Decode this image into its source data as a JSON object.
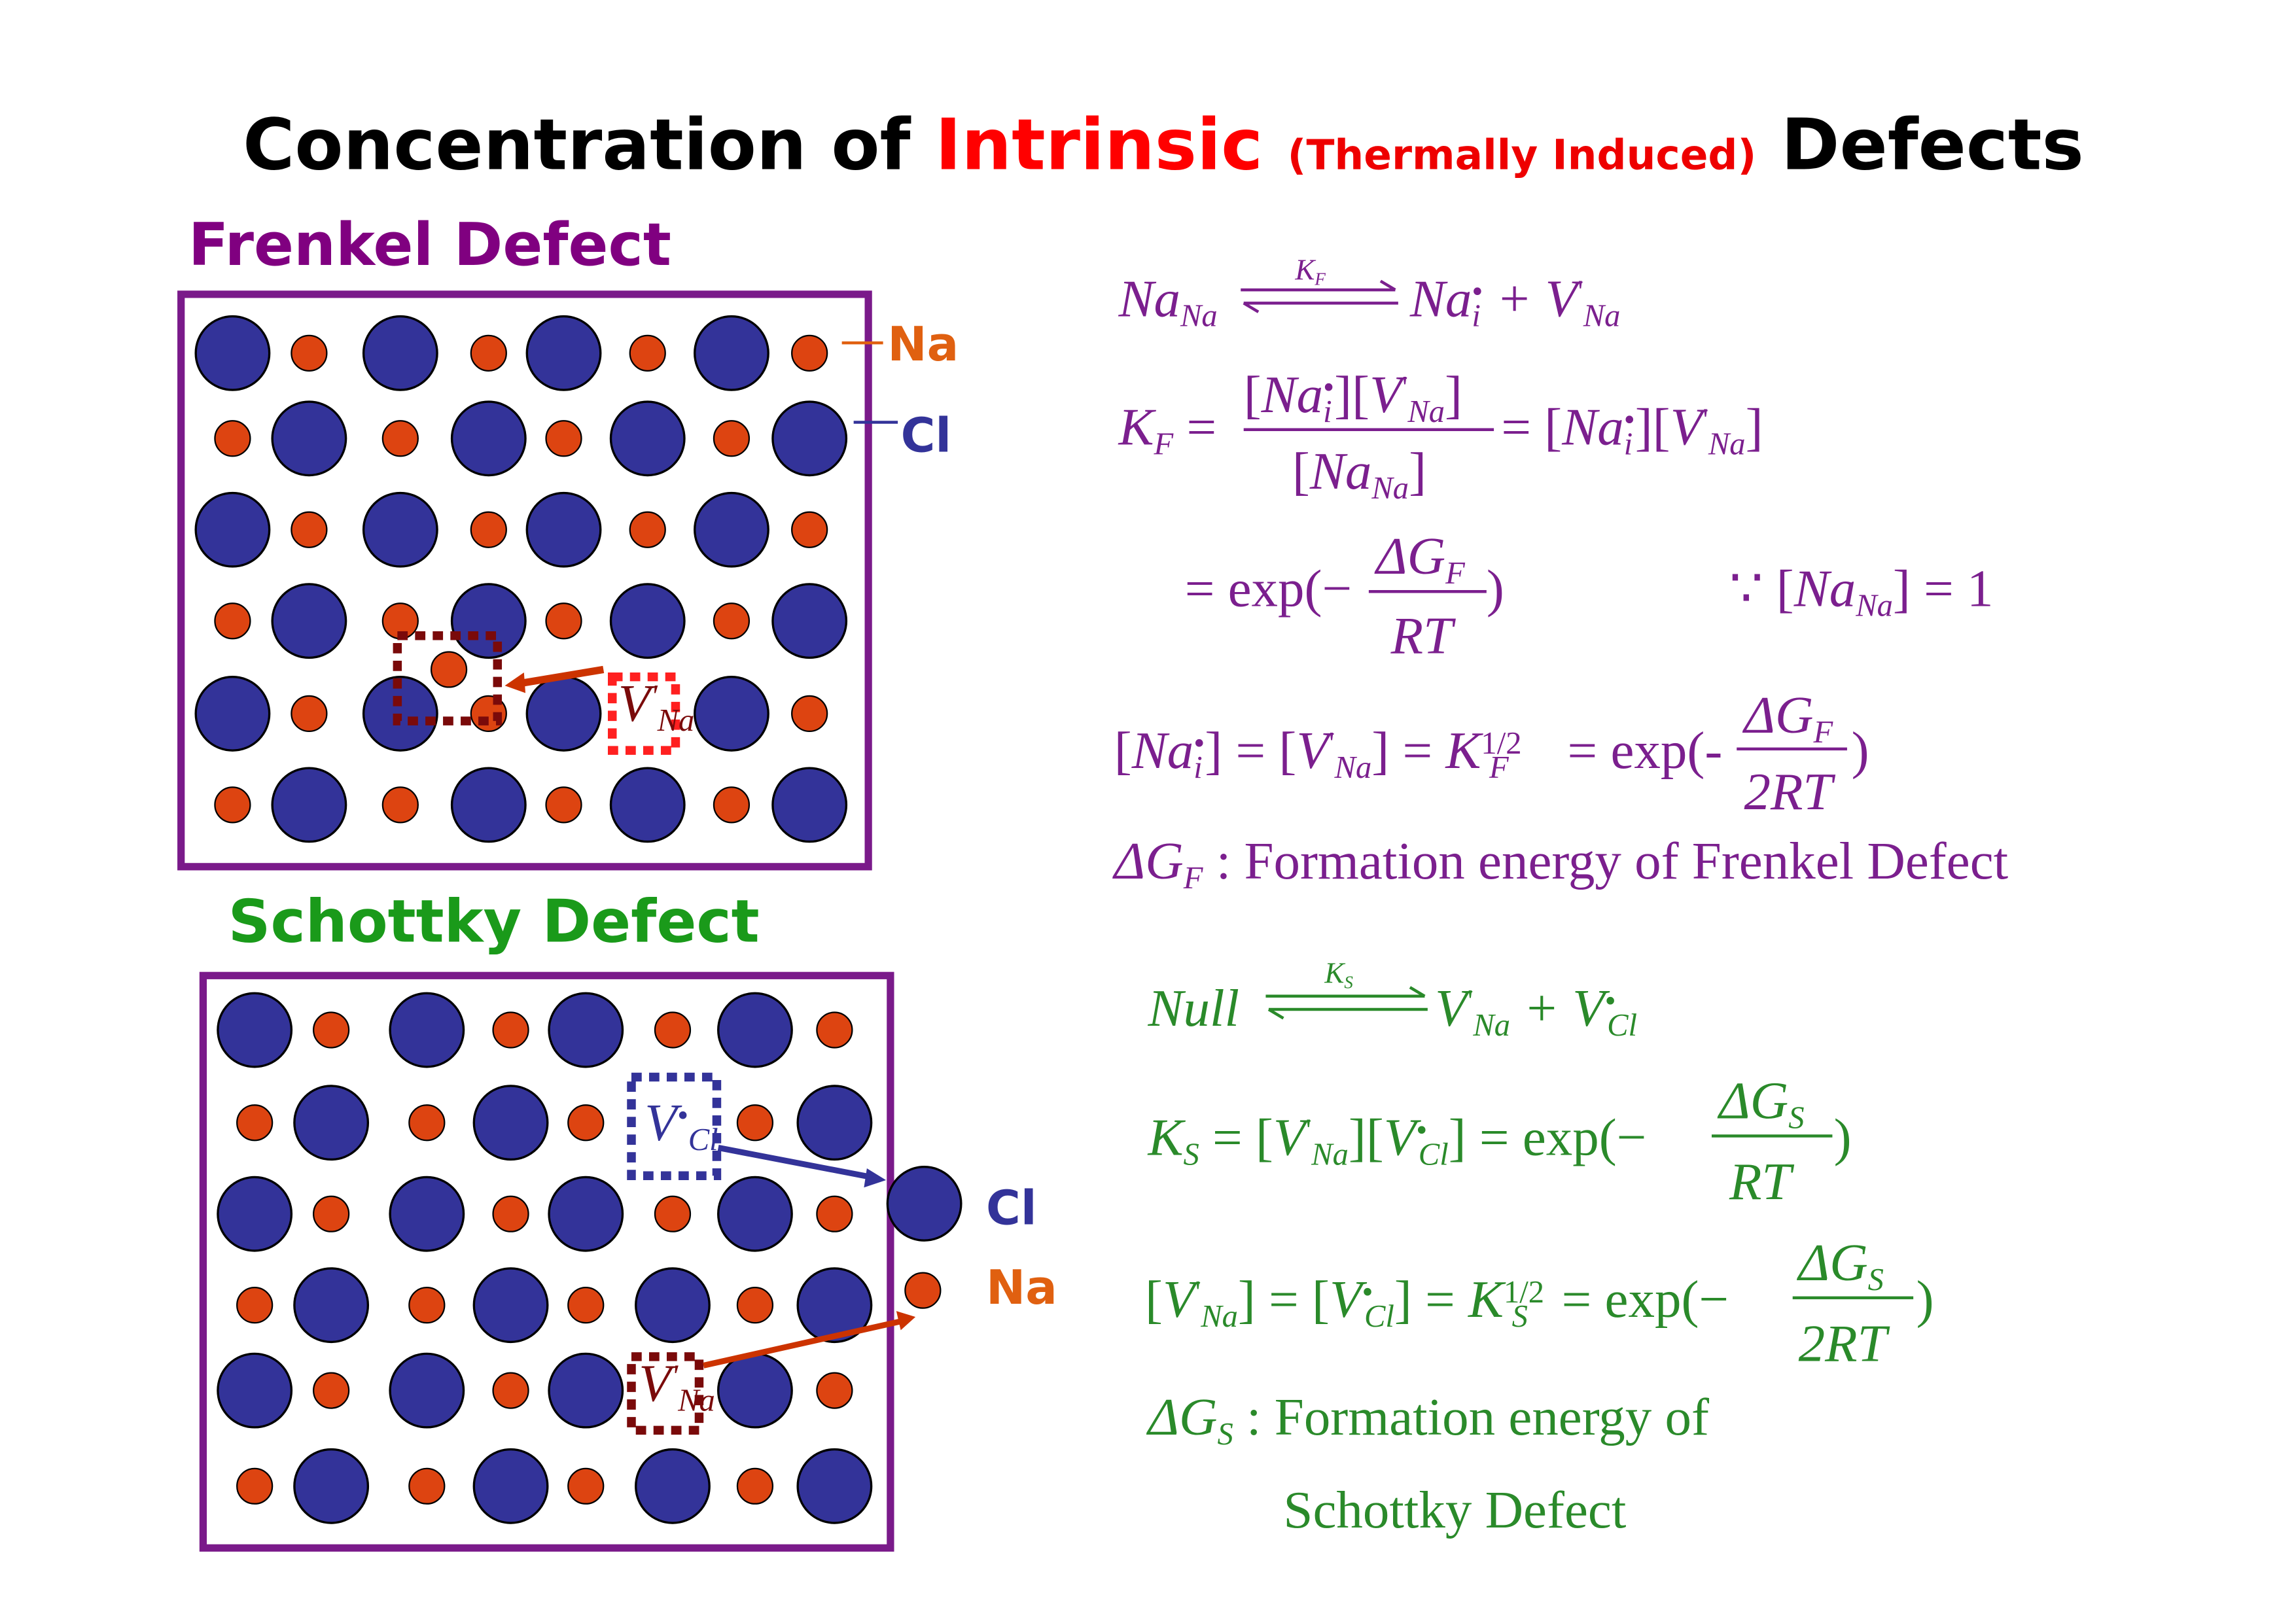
{
  "title": {
    "part1": "Concentration of",
    "highlight": "Intrinsic",
    "note": "(Thermally Induced)",
    "part2": "Defects"
  },
  "frenkel": {
    "heading": "Frenkel Defect",
    "na_label": "Na",
    "cl_label": "Cl",
    "vacancy": [
      "V",
      "'",
      "Na"
    ],
    "reaction": [
      "Na",
      "Na",
      "K",
      "F",
      "Na",
      "i",
      "•",
      "+ V",
      "'",
      "Na"
    ],
    "constant": {
      "lhs": [
        "K",
        "F",
        "="
      ],
      "num": [
        "[",
        "Na",
        "i",
        "•",
        "][",
        "V",
        "'",
        "Na",
        "]"
      ],
      "den": [
        "[",
        "Na",
        "Na",
        "]"
      ],
      "rhs": [
        "= [",
        "Na",
        "i",
        "•",
        "][",
        "V",
        "'",
        "Na",
        "]"
      ]
    },
    "exp": {
      "pre": "= exp(−",
      "num": [
        "ΔG",
        "F"
      ],
      "den": "RT",
      "post": ")",
      "note": [
        "∵ [",
        "Na",
        "Na",
        "] = 1"
      ]
    },
    "conc": {
      "lhs": [
        "[",
        "Na",
        "i",
        "•",
        "] = [",
        "V",
        "'",
        "Na",
        "] = ",
        "K",
        "1/2",
        "F"
      ],
      "mid": "= exp(-",
      "num": [
        "ΔG",
        "F"
      ],
      "den": "2RT",
      "post": ")"
    },
    "definition": [
      "ΔG",
      "F",
      ": Formation energy of Frenkel Defect"
    ]
  },
  "schottky": {
    "heading": "Schottky Defect",
    "na_label": "Na",
    "cl_label": "Cl",
    "cl_vacancy": [
      "V",
      "•",
      "Cl"
    ],
    "na_vacancy": [
      "V",
      "'",
      "Na"
    ],
    "reaction": [
      "Null",
      "K",
      "S",
      "V",
      "'",
      "Na",
      "+ V",
      "•",
      "Cl"
    ],
    "constant": {
      "lhs": [
        "K",
        "S",
        "= [",
        "V",
        "'",
        "Na",
        "][",
        "V",
        "•",
        "Cl",
        "] = exp(−"
      ],
      "num": [
        "ΔG",
        "S"
      ],
      "den": "RT",
      "post": ")"
    },
    "conc": {
      "lhs": [
        "[",
        "V",
        "'",
        "Na",
        "] = [",
        "V",
        "•",
        "Cl",
        "] = ",
        "K",
        "1/2",
        "S",
        "= exp(−"
      ],
      "num": [
        "ΔG",
        "S"
      ],
      "den": "2RT",
      "post": ")"
    },
    "definition": [
      "ΔG",
      "S",
      ": Formation energy of",
      "Schottky Defect"
    ]
  }
}
